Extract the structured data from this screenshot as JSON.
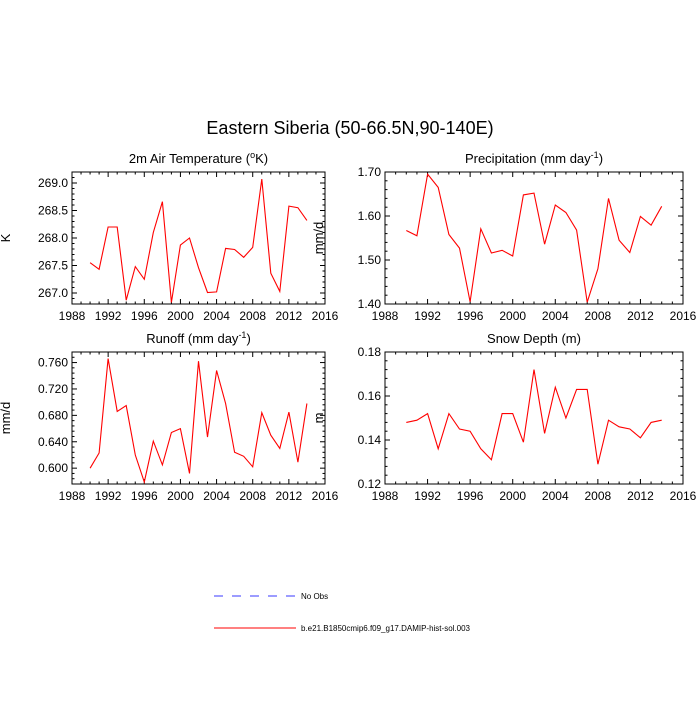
{
  "title": "Eastern Siberia (50-66.5N,90-140E)",
  "legend": {
    "entries": [
      {
        "label": "No Obs",
        "style": "dashed",
        "color": "#3a3aff"
      },
      {
        "label": "b.e21.B1850cmip6.f09_g17.DAMIP-hist-sol.003",
        "style": "solid",
        "color": "#ff0000"
      }
    ],
    "placement": "bottom"
  },
  "chart_data": [
    {
      "type": "line",
      "title_main": "2m Air Temperature (",
      "title_sup": "o",
      "title_end": "K)",
      "ylabel": "K",
      "xlim": [
        1988,
        2016
      ],
      "ylim": [
        266.8,
        269.2
      ],
      "xticks": [
        1988,
        1992,
        1996,
        2000,
        2004,
        2008,
        2012,
        2016
      ],
      "yticks": [
        267.0,
        267.5,
        268.0,
        268.5,
        269.0
      ],
      "ytick_labels": [
        "267.0",
        "267.5",
        "268.0",
        "268.5",
        "269.0"
      ],
      "x": [
        1990,
        1991,
        1992,
        1993,
        1994,
        1995,
        1996,
        1997,
        1998,
        1999,
        2000,
        2001,
        2002,
        2003,
        2004,
        2005,
        2006,
        2007,
        2008,
        2009,
        2010,
        2011,
        2012,
        2013,
        2014
      ],
      "series": [
        {
          "color": "#ff0000",
          "values": [
            267.55,
            267.43,
            268.2,
            268.2,
            266.87,
            267.48,
            267.25,
            268.1,
            268.66,
            266.83,
            267.87,
            268.0,
            267.46,
            267.01,
            267.02,
            267.81,
            267.79,
            267.65,
            267.83,
            269.07,
            267.36,
            267.03,
            268.58,
            268.55,
            268.32
          ]
        }
      ]
    },
    {
      "type": "line",
      "title_main": "Precipitation (mm day",
      "title_sup": "-1",
      "title_end": ")",
      "ylabel": "mm/d",
      "xlim": [
        1988,
        2016
      ],
      "ylim": [
        1.4,
        1.7
      ],
      "xticks": [
        1988,
        1992,
        1996,
        2000,
        2004,
        2008,
        2012,
        2016
      ],
      "yticks": [
        1.4,
        1.5,
        1.6,
        1.7
      ],
      "ytick_labels": [
        "1.40",
        "1.50",
        "1.60",
        "1.70"
      ],
      "x": [
        1990,
        1991,
        1992,
        1993,
        1994,
        1995,
        1996,
        1997,
        1998,
        1999,
        2000,
        2001,
        2002,
        2003,
        2004,
        2005,
        2006,
        2007,
        2008,
        2009,
        2010,
        2011,
        2012,
        2013,
        2014
      ],
      "series": [
        {
          "color": "#ff0000",
          "values": [
            1.567,
            1.555,
            1.695,
            1.665,
            1.558,
            1.527,
            1.405,
            1.571,
            1.516,
            1.522,
            1.509,
            1.648,
            1.652,
            1.536,
            1.625,
            1.608,
            1.568,
            1.404,
            1.48,
            1.64,
            1.545,
            1.517,
            1.599,
            1.579,
            1.622
          ]
        }
      ]
    },
    {
      "type": "line",
      "title_main": "Runoff (mm day",
      "title_sup": "-1",
      "title_end": ")",
      "ylabel": "mm/d",
      "xlim": [
        1988,
        2016
      ],
      "ylim": [
        0.576,
        0.776
      ],
      "xticks": [
        1988,
        1992,
        1996,
        2000,
        2004,
        2008,
        2012,
        2016
      ],
      "yticks": [
        0.6,
        0.64,
        0.68,
        0.72,
        0.76
      ],
      "ytick_labels": [
        "0.600",
        "0.640",
        "0.680",
        "0.720",
        "0.760"
      ],
      "x": [
        1990,
        1991,
        1992,
        1993,
        1994,
        1995,
        1996,
        1997,
        1998,
        1999,
        2000,
        2001,
        2002,
        2003,
        2004,
        2005,
        2006,
        2007,
        2008,
        2009,
        2010,
        2011,
        2012,
        2013,
        2014
      ],
      "series": [
        {
          "color": "#ff0000",
          "values": [
            0.6,
            0.623,
            0.766,
            0.686,
            0.695,
            0.62,
            0.579,
            0.641,
            0.605,
            0.654,
            0.66,
            0.592,
            0.762,
            0.647,
            0.748,
            0.698,
            0.624,
            0.618,
            0.602,
            0.684,
            0.65,
            0.63,
            0.685,
            0.609,
            0.698
          ]
        }
      ]
    },
    {
      "type": "line",
      "title_main": "Snow Depth (m)",
      "title_sup": "",
      "title_end": "",
      "ylabel": "m",
      "xlim": [
        1988,
        2016
      ],
      "ylim": [
        0.12,
        0.18
      ],
      "xticks": [
        1988,
        1992,
        1996,
        2000,
        2004,
        2008,
        2012,
        2016
      ],
      "yticks": [
        0.12,
        0.14,
        0.16,
        0.18
      ],
      "ytick_labels": [
        "0.12",
        "0.14",
        "0.16",
        "0.18"
      ],
      "x": [
        1990,
        1991,
        1992,
        1993,
        1994,
        1995,
        1996,
        1997,
        1998,
        1999,
        2000,
        2001,
        2002,
        2003,
        2004,
        2005,
        2006,
        2007,
        2008,
        2009,
        2010,
        2011,
        2012,
        2013,
        2014
      ],
      "series": [
        {
          "color": "#ff0000",
          "values": [
            0.148,
            0.149,
            0.152,
            0.136,
            0.152,
            0.145,
            0.144,
            0.136,
            0.131,
            0.152,
            0.152,
            0.139,
            0.172,
            0.143,
            0.164,
            0.15,
            0.163,
            0.163,
            0.129,
            0.149,
            0.146,
            0.145,
            0.141,
            0.148,
            0.149
          ]
        }
      ]
    }
  ]
}
